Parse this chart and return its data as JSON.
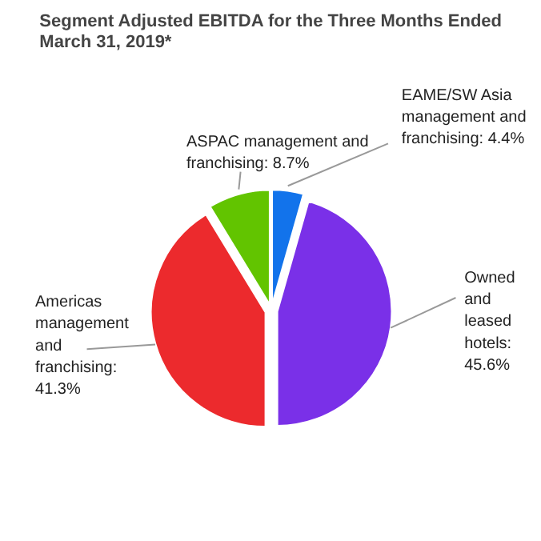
{
  "chart_data": {
    "type": "pie",
    "title": "Segment Adjusted EBITDA for the Three Months Ended March 31, 2019*",
    "categories": [
      "EAME/SW Asia management and franchising: 4.4%",
      "Owned and leased hotels: 45.6%",
      "Americas management and franchising: 41.3%",
      "ASPAC management and franchising: 8.7%"
    ],
    "values": [
      4.4,
      45.6,
      41.3,
      8.7
    ],
    "colors": [
      "#1273eb",
      "#7a30e8",
      "#ec2a2d",
      "#62c400"
    ]
  }
}
